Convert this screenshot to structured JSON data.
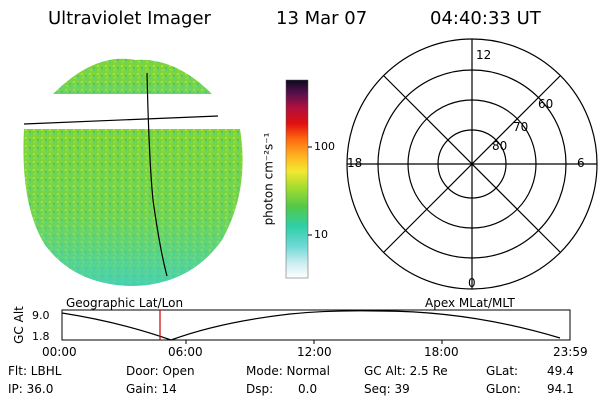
{
  "header": {
    "title": "Ultraviolet Imager",
    "date": "13 Mar 07",
    "time": "04:40:33 UT"
  },
  "colorbar": {
    "unit_label": "photon cm⁻²s⁻¹",
    "ticks": [
      "100",
      "10"
    ]
  },
  "polar_plot": {
    "mlt_labels": {
      "top": "12",
      "left": "18",
      "right": "6",
      "bottom": "0"
    },
    "lat_labels": [
      "60",
      "70",
      "80"
    ]
  },
  "map_labels": {
    "left": "Geographic Lat/Lon",
    "right": "Apex MLat/MLT"
  },
  "altitude_plot": {
    "axis_label": "GC Alt",
    "y_ticks": [
      "9.0",
      "1.8"
    ],
    "x_ticks": [
      "00:00",
      "06:00",
      "12:00",
      "18:00",
      "23:59"
    ]
  },
  "status": {
    "flt": "Flt: LBHL",
    "ip": "IP: 36.0",
    "door": "Door: Open",
    "gain": "Gain: 14",
    "mode": "Mode: Normal",
    "dsp_label": "Dsp:",
    "dsp_value": "0.0",
    "gc_alt": "GC Alt: 2.5 Re",
    "seq": "Seq: 39",
    "glat_label": "GLat:",
    "glat_value": "49.4",
    "glon_label": "GLon:",
    "glon_value": "94.1"
  },
  "colors": {
    "image_base": "#7ed43a",
    "image_cyan": "#3fd6c8",
    "marker_red": "#d00000"
  }
}
